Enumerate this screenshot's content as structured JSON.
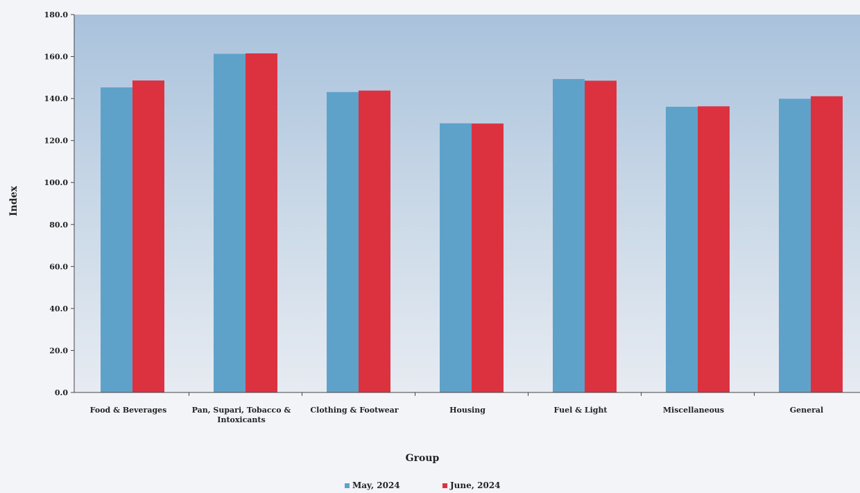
{
  "chart_data": {
    "type": "bar",
    "title": "",
    "xlabel": "Group",
    "ylabel": "Index",
    "ylim": [
      0,
      180
    ],
    "y_ticks": [
      "0.0",
      "20.0",
      "40.0",
      "60.0",
      "80.0",
      "100.0",
      "120.0",
      "140.0",
      "160.0",
      "180.0"
    ],
    "categories": [
      [
        "Food & Beverages"
      ],
      [
        "Pan, Supari, Tobacco &",
        "Intoxicants"
      ],
      [
        "Clothing & Footwear"
      ],
      [
        "Housing"
      ],
      [
        "Fuel & Light"
      ],
      [
        "Miscellaneous"
      ],
      [
        "General"
      ]
    ],
    "series": [
      {
        "name": "May, 2024",
        "color": "#5fa2c9",
        "values": [
          145.3,
          161.3,
          143.1,
          128.2,
          149.3,
          136.1,
          139.9
        ]
      },
      {
        "name": "June, 2024",
        "color": "#dc3240",
        "values": [
          148.6,
          161.5,
          143.8,
          128.1,
          148.5,
          136.3,
          141.1
        ]
      }
    ],
    "legend_position": "bottom-center",
    "grid": false,
    "plot_background": "gradient-blue"
  }
}
